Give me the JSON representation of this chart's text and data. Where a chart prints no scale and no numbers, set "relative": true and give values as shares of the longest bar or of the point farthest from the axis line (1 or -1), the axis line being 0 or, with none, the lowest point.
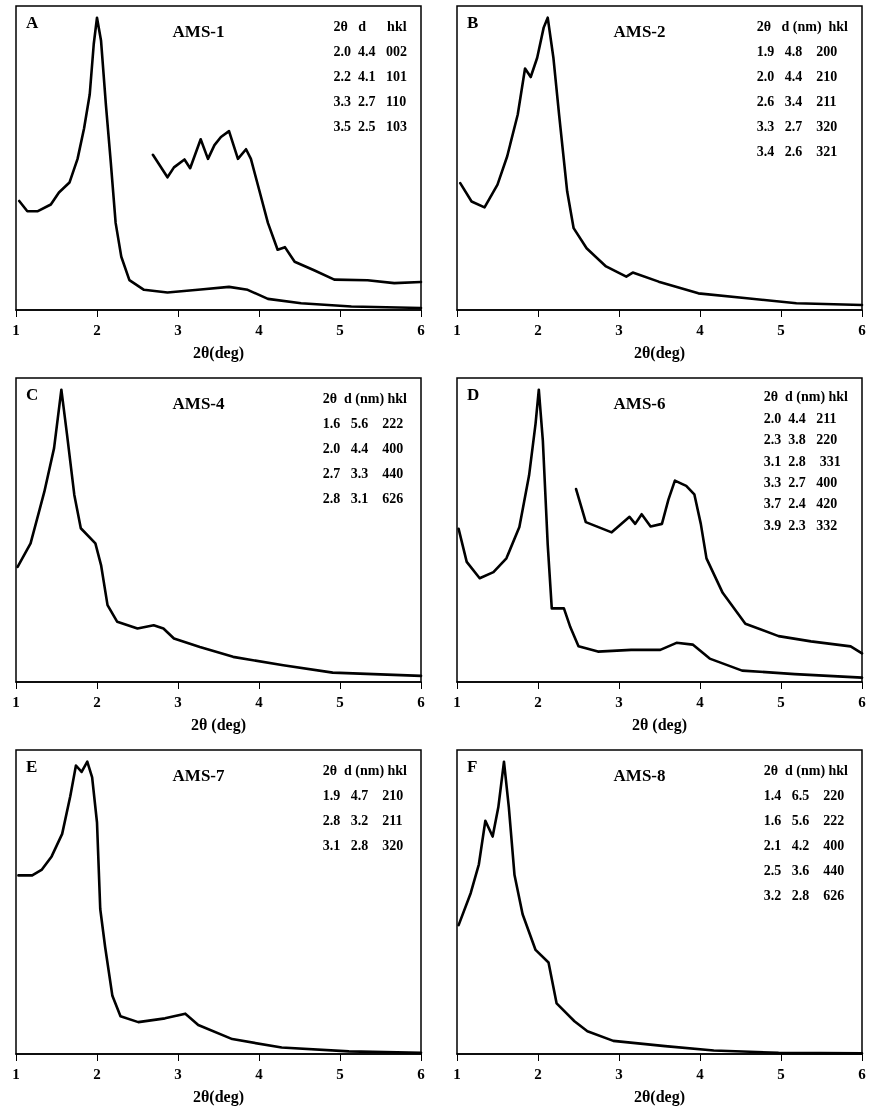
{
  "chart_data": [
    {
      "type": "line",
      "title": "AMS-1",
      "xlabel": "2θ(deg)",
      "relative": true,
      "xlim": [
        1,
        6
      ],
      "xticks": [
        1,
        2,
        3,
        4,
        5,
        6
      ],
      "grid": false,
      "marker": "none",
      "line_style": "solid",
      "annotations": [
        "A",
        "2θ   d      hkl",
        "2.0  4.4   002",
        "2.2  4.1   101",
        "3.3  2.7   110",
        "3.5  2.5   103"
      ],
      "series": [
        {
          "color": "#000000",
          "x": [
            1.04,
            1.14,
            1.27,
            1.43,
            1.53,
            1.66,
            1.76,
            1.84,
            1.91,
            1.96,
            2.0,
            2.05,
            2.11,
            2.17,
            2.23,
            2.3,
            2.4,
            2.58,
            2.87,
            3.28,
            3.63,
            3.86,
            4.11,
            4.52,
            5.14,
            6.0
          ],
          "values": [
            0.373,
            0.338,
            0.338,
            0.361,
            0.402,
            0.436,
            0.517,
            0.621,
            0.737,
            0.91,
            1.0,
            0.921,
            0.702,
            0.506,
            0.298,
            0.182,
            0.102,
            0.069,
            0.06,
            0.07,
            0.079,
            0.069,
            0.038,
            0.023,
            0.012,
            0.007
          ]
        },
        {
          "color": "#000000",
          "x": [
            2.69,
            2.87,
            2.95,
            3.08,
            3.15,
            3.28,
            3.37,
            3.45,
            3.53,
            3.63,
            3.74,
            3.84,
            3.9,
            4.0,
            4.11,
            4.23,
            4.32,
            4.44,
            4.68,
            4.93,
            5.34,
            5.67,
            6.0
          ],
          "values": [
            0.531,
            0.454,
            0.488,
            0.515,
            0.485,
            0.584,
            0.517,
            0.564,
            0.592,
            0.612,
            0.517,
            0.55,
            0.517,
            0.413,
            0.298,
            0.206,
            0.215,
            0.165,
            0.136,
            0.104,
            0.102,
            0.092,
            0.096
          ]
        }
      ]
    },
    {
      "type": "line",
      "title": "AMS-2",
      "xlabel": "2θ(deg)",
      "relative": true,
      "xlim": [
        1,
        6
      ],
      "xticks": [
        1,
        2,
        3,
        4,
        5,
        6
      ],
      "grid": false,
      "marker": "none",
      "line_style": "solid",
      "annotations": [
        "B",
        "2θ   d (nm)  hkl",
        "1.9   4.8    200",
        "2.0   4.4    210",
        "2.6   3.4    211",
        "3.3   2.7    320",
        "3.4   2.6    321"
      ],
      "series": [
        {
          "color": "#000000",
          "x": [
            1.04,
            1.18,
            1.34,
            1.5,
            1.62,
            1.75,
            1.84,
            1.91,
            1.99,
            2.07,
            2.12,
            2.19,
            2.26,
            2.36,
            2.44,
            2.6,
            2.84,
            3.09,
            3.17,
            3.49,
            3.98,
            4.58,
            5.19,
            6.0
          ],
          "values": [
            0.434,
            0.371,
            0.351,
            0.429,
            0.526,
            0.669,
            0.826,
            0.797,
            0.863,
            0.966,
            1.0,
            0.863,
            0.669,
            0.406,
            0.28,
            0.211,
            0.149,
            0.114,
            0.128,
            0.097,
            0.057,
            0.04,
            0.023,
            0.017
          ]
        }
      ]
    },
    {
      "type": "line",
      "title": "AMS-4",
      "xlabel": "2θ (deg)",
      "relative": true,
      "xlim": [
        1,
        6
      ],
      "xticks": [
        1,
        2,
        3,
        4,
        5,
        6
      ],
      "grid": false,
      "marker": "none",
      "line_style": "solid",
      "annotations": [
        "C",
        "2θ  d (nm) hkl",
        "1.6   5.6    222",
        "2.0   4.4    400",
        "2.7   3.3    440",
        "2.8   3.1    626"
      ],
      "series": [
        {
          "color": "#000000",
          "x": [
            1.02,
            1.18,
            1.35,
            1.47,
            1.56,
            1.63,
            1.72,
            1.8,
            1.98,
            2.05,
            2.13,
            2.25,
            2.5,
            2.7,
            2.82,
            2.95,
            3.27,
            3.68,
            4.3,
            4.91,
            6.0
          ],
          "values": [
            0.394,
            0.474,
            0.651,
            0.8,
            1.0,
            0.846,
            0.64,
            0.526,
            0.474,
            0.4,
            0.263,
            0.206,
            0.183,
            0.194,
            0.183,
            0.149,
            0.12,
            0.086,
            0.057,
            0.032,
            0.021
          ]
        }
      ]
    },
    {
      "type": "line",
      "title": "AMS-6",
      "xlabel": "2θ (deg)",
      "relative": true,
      "xlim": [
        1,
        6
      ],
      "xticks": [
        1,
        2,
        3,
        4,
        5,
        6
      ],
      "grid": false,
      "marker": "none",
      "line_style": "solid",
      "annotations": [
        "D",
        "2θ  d (nm) hkl",
        "2.0  4.4   211",
        "2.3  3.8   220",
        "3.1  2.8    331",
        "3.3  2.7   400",
        "3.7  2.4   420",
        "3.9  2.3   332"
      ],
      "series": [
        {
          "color": "#000000",
          "x": [
            1.02,
            1.12,
            1.28,
            1.45,
            1.61,
            1.77,
            1.89,
            1.97,
            2.01,
            2.06,
            2.12,
            2.17,
            2.32,
            2.4,
            2.5,
            2.74,
            3.15,
            3.51,
            3.71,
            3.91,
            4.12,
            4.52,
            5.17,
            6.0
          ],
          "values": [
            0.524,
            0.411,
            0.355,
            0.376,
            0.423,
            0.53,
            0.707,
            0.884,
            1.0,
            0.825,
            0.47,
            0.252,
            0.252,
            0.187,
            0.122,
            0.104,
            0.11,
            0.11,
            0.134,
            0.128,
            0.08,
            0.039,
            0.027,
            0.015
          ]
        },
        {
          "color": "#000000",
          "x": [
            2.47,
            2.59,
            2.91,
            3.13,
            3.2,
            3.28,
            3.39,
            3.53,
            3.61,
            3.69,
            3.83,
            3.93,
            4.01,
            4.08,
            4.28,
            4.56,
            4.97,
            5.37,
            5.86,
            6.0
          ],
          "values": [
            0.66,
            0.547,
            0.512,
            0.565,
            0.541,
            0.574,
            0.532,
            0.541,
            0.624,
            0.689,
            0.671,
            0.642,
            0.541,
            0.423,
            0.305,
            0.199,
            0.157,
            0.139,
            0.122,
            0.098
          ]
        }
      ]
    },
    {
      "type": "line",
      "title": "AMS-7",
      "xlabel": "2θ(deg)",
      "relative": true,
      "xlim": [
        1,
        6
      ],
      "xticks": [
        1,
        2,
        3,
        4,
        5,
        6
      ],
      "grid": false,
      "marker": "none",
      "line_style": "solid",
      "annotations": [
        "E",
        "2θ  d (nm) hkl",
        "1.9   4.7    210",
        "2.8   3.2    211",
        "3.1   2.8    320"
      ],
      "series": [
        {
          "color": "#000000",
          "x": [
            1.03,
            1.2,
            1.32,
            1.44,
            1.57,
            1.67,
            1.74,
            1.81,
            1.88,
            1.94,
            2.0,
            2.04,
            2.1,
            2.19,
            2.29,
            2.51,
            2.84,
            3.09,
            3.25,
            3.67,
            4.28,
            5.11,
            6.0
          ],
          "values": [
            0.611,
            0.611,
            0.631,
            0.676,
            0.753,
            0.882,
            0.987,
            0.965,
            1.0,
            0.946,
            0.792,
            0.496,
            0.367,
            0.199,
            0.129,
            0.109,
            0.122,
            0.138,
            0.099,
            0.051,
            0.022,
            0.009,
            0.004
          ]
        }
      ]
    },
    {
      "type": "line",
      "title": "AMS-8",
      "xlabel": "2θ(deg)",
      "relative": true,
      "xlim": [
        1,
        6
      ],
      "xticks": [
        1,
        2,
        3,
        4,
        5,
        6
      ],
      "grid": false,
      "marker": "none",
      "line_style": "solid",
      "annotations": [
        "F",
        "2θ  d (nm) hkl",
        "1.4   6.5    220",
        "1.6   5.6    222",
        "2.1   4.2    400",
        "2.5   3.6    440",
        "3.2   2.8    626"
      ],
      "series": [
        {
          "color": "#000000",
          "x": [
            1.02,
            1.17,
            1.27,
            1.35,
            1.44,
            1.51,
            1.58,
            1.64,
            1.71,
            1.81,
            1.97,
            2.13,
            2.23,
            2.45,
            2.61,
            2.93,
            3.57,
            4.17,
            4.97,
            6.0
          ],
          "values": [
            0.441,
            0.551,
            0.649,
            0.798,
            0.744,
            0.844,
            1.0,
            0.844,
            0.612,
            0.478,
            0.356,
            0.313,
            0.173,
            0.112,
            0.078,
            0.045,
            0.027,
            0.012,
            0.004,
            0.002
          ]
        }
      ]
    }
  ]
}
